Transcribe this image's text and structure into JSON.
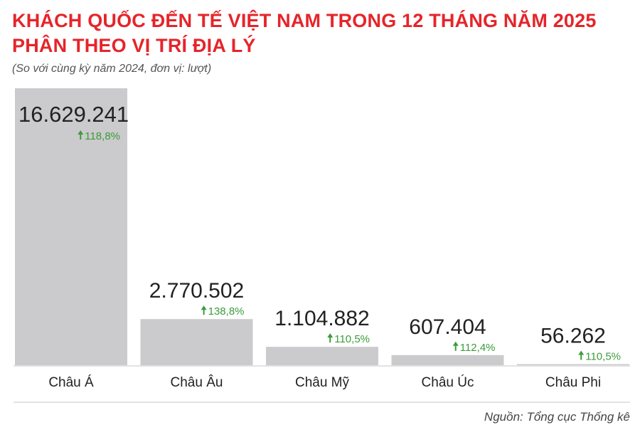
{
  "header": {
    "title_line1": "KHÁCH QUỐC ĐẾN TẾ VIỆT NAM TRONG 12 THÁNG NĂM 2025",
    "title_line2": "PHÂN THEO VỊ TRÍ ĐỊA LÝ",
    "subtitle": "(So với cùng kỳ năm 2024, đơn vị: lượt)"
  },
  "footer": {
    "source": "Nguồn: Tổng cục Thống kê"
  },
  "colors": {
    "title": "#e5252a",
    "bar": "#cbcacc",
    "growth": "#3a9c3a",
    "text": "#222222",
    "axis": "#d9d9d9"
  },
  "chart_data": {
    "type": "bar",
    "categories": [
      "Châu Á",
      "Châu Âu",
      "Châu Mỹ",
      "Châu Úc",
      "Châu Phi"
    ],
    "values": [
      16629241,
      2770502,
      1104882,
      607404,
      56262
    ],
    "value_labels": [
      "16.629.241",
      "2.770.502",
      "1.104.882",
      "607.404",
      "56.262"
    ],
    "growth_labels": [
      "118,8%",
      "138,8%",
      "110,5%",
      "112,4%",
      "110,5%"
    ],
    "growth_icon": "arrow-up-icon",
    "title": "KHÁCH QUỐC ĐẾN TẾ VIỆT NAM TRONG 12 THÁNG NĂM 2025 PHÂN THEO VỊ TRÍ ĐỊA LÝ",
    "xlabel": "",
    "ylabel": "",
    "ylim": [
      0,
      16629241
    ],
    "grid": false,
    "legend": "none"
  }
}
